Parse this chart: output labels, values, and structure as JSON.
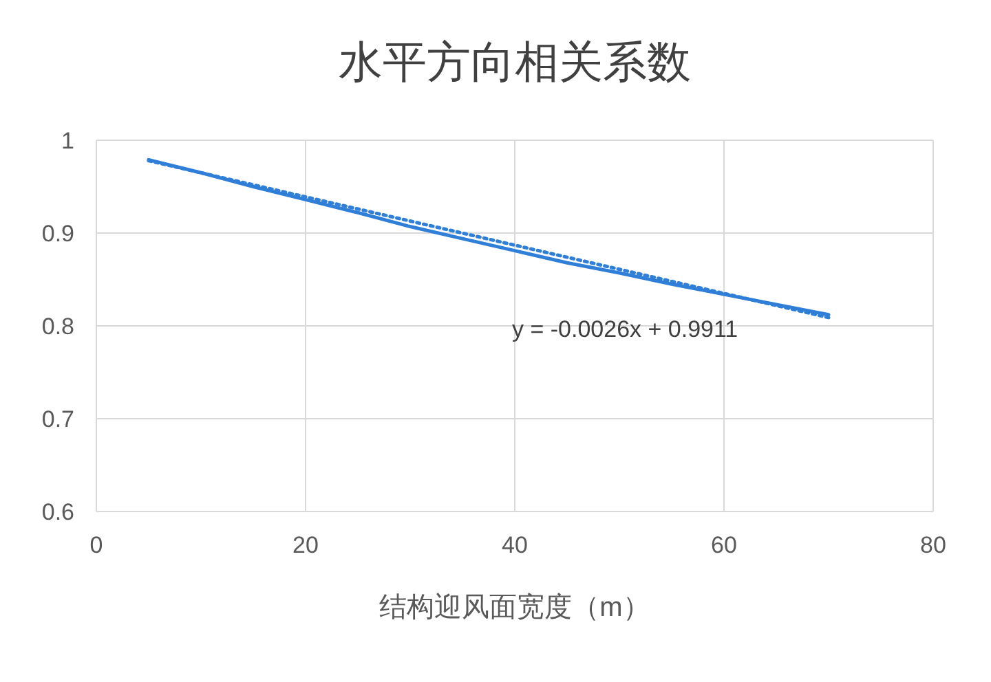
{
  "chart_data": {
    "type": "line",
    "title": "水平方向相关系数",
    "xlabel": "结构迎风面宽度（m）",
    "xlim": [
      0,
      80
    ],
    "xticks": [
      0,
      20,
      40,
      60,
      80
    ],
    "ylim": [
      0.6,
      1
    ],
    "yticks": [
      0.6,
      0.7,
      0.8,
      0.9,
      1
    ],
    "grid": true,
    "marker": "none",
    "series": [
      {
        "color": "#2f7ed8",
        "line_style": "solid",
        "x": [
          5,
          10,
          15,
          20,
          25,
          30,
          35,
          40,
          45,
          50,
          55,
          60,
          65,
          70
        ],
        "values": [
          0.979,
          0.965,
          0.95,
          0.936,
          0.922,
          0.907,
          0.894,
          0.881,
          0.868,
          0.857,
          0.845,
          0.834,
          0.823,
          0.812
        ]
      },
      {
        "color": "#2f7ed8",
        "line_style": "dotted",
        "x": [
          5,
          70
        ],
        "values": [
          0.978,
          0.809
        ]
      }
    ],
    "annotations": [
      "y = -0.0026x + 0.9911"
    ]
  }
}
